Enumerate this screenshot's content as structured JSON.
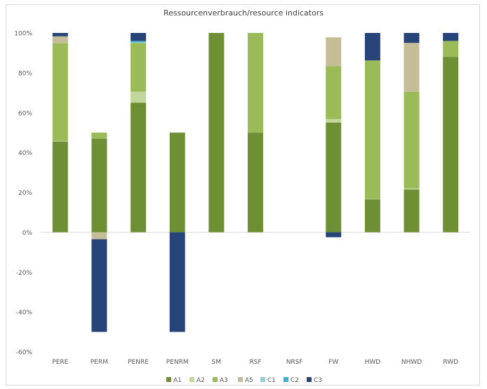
{
  "chart_data": {
    "type": "bar",
    "stacked": true,
    "title": "Ressourcenverbrauch/resource indicators",
    "xlabel": "",
    "ylabel": "",
    "ylim": [
      -60,
      100
    ],
    "yticks": [
      -60,
      -40,
      -20,
      0,
      20,
      40,
      60,
      80,
      100
    ],
    "ytick_labels": [
      "-60%",
      "-40%",
      "-20%",
      "0%",
      "20%",
      "40%",
      "60%",
      "80%",
      "100%"
    ],
    "grid": false,
    "legend_position": "bottom",
    "categories": [
      "PERE",
      "PERM",
      "PENRE",
      "PENRM",
      "SM",
      "RSF",
      "NRSF",
      "FW",
      "HWD",
      "NHWD",
      "RWD"
    ],
    "series": [
      {
        "name": "A1",
        "color": "#6f8f35",
        "values": [
          45.5,
          47,
          65,
          50,
          100,
          50,
          0,
          55,
          16.5,
          21.5,
          88
        ]
      },
      {
        "name": "A2",
        "color": "#c3d69b",
        "values": [
          0.3,
          0,
          5.5,
          0,
          0,
          0,
          0,
          1.8,
          0.2,
          0.5,
          0
        ]
      },
      {
        "name": "A3",
        "color": "#9bbb59",
        "values": [
          49,
          3,
          24.5,
          0,
          0,
          50,
          0,
          26.5,
          69.5,
          48.5,
          8
        ]
      },
      {
        "name": "A5",
        "color": "#c4bd97",
        "values": [
          3.5,
          -3.5,
          0,
          0,
          0,
          0,
          0,
          14.5,
          0,
          24.5,
          0
        ]
      },
      {
        "name": "C1",
        "color": "#92cddc",
        "values": [
          0,
          0,
          0.3,
          0,
          0,
          0,
          0,
          0,
          0,
          0,
          0
        ]
      },
      {
        "name": "C2",
        "color": "#4bacc6",
        "values": [
          0,
          0,
          0.7,
          0,
          0,
          0,
          0,
          0,
          0,
          0,
          0
        ]
      },
      {
        "name": "C3",
        "color": "#264478",
        "values": [
          1.7,
          -46.5,
          4,
          -50,
          0,
          0,
          0,
          -2.5,
          13.8,
          5,
          4
        ]
      }
    ]
  }
}
